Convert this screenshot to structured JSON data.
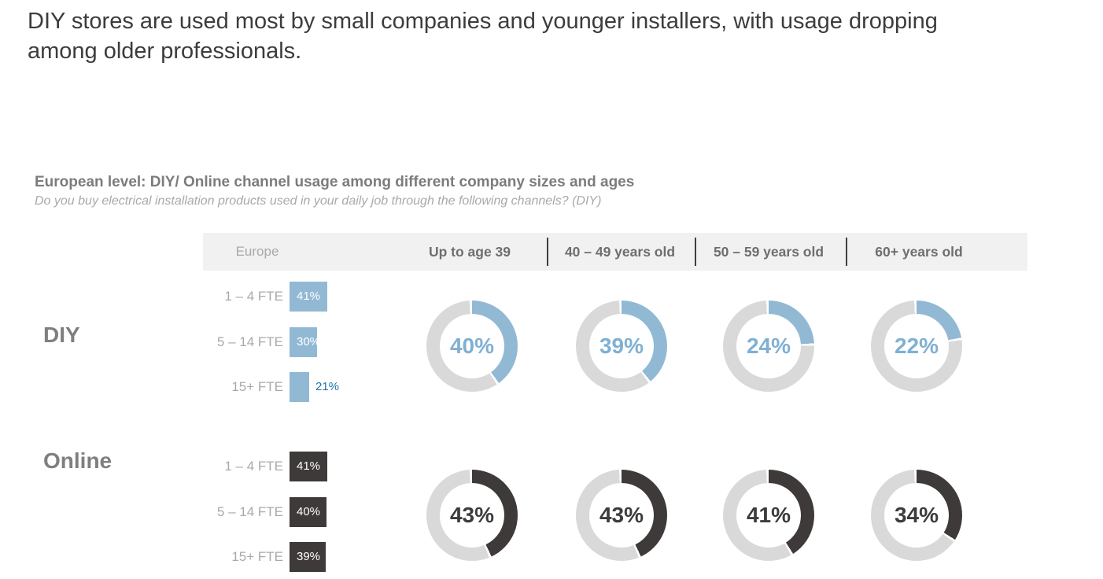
{
  "headline": {
    "line1": "DIY stores are used most by small companies and younger installers, with usage dropping",
    "line2": "among older professionals."
  },
  "chart_heading": "European level: DIY/ Online channel usage among different company sizes and ages",
  "chart_question": "Do you buy electrical installation products used in your daily job through the following channels? (DIY)",
  "columns": {
    "region": "Europe",
    "ages": [
      "Up to age 39",
      "40 – 49 years old",
      "50 – 59 years old",
      "60+ years old"
    ]
  },
  "groups": {
    "diy_label": "DIY",
    "online_label": "Online"
  },
  "colors": {
    "diy": "#92b9d4",
    "online": "#3e3a39",
    "ring_rest": "#d9d9d9",
    "band": "#f1f1f1",
    "diy_value_text": "#7fb0d4",
    "online_value_text": "#3c3c3c",
    "diy_outside_label": "#1e74a6"
  },
  "chart_data": [
    {
      "type": "bar",
      "group": "DIY",
      "region": "Europe",
      "categories": [
        "1 – 4 FTE",
        "5 – 14 FTE",
        "15+ FTE"
      ],
      "values": [
        41,
        30,
        21
      ],
      "unit": "%",
      "color": "#92b9d4",
      "orientation": "horizontal"
    },
    {
      "type": "pie",
      "subtype": "donut",
      "group": "DIY",
      "categories": [
        "Up to age 39",
        "40 – 49 years old",
        "50 – 59 years old",
        "60+ years old"
      ],
      "values": [
        40,
        39,
        24,
        22
      ],
      "unit": "%",
      "color": "#92b9d4"
    },
    {
      "type": "bar",
      "group": "Online",
      "region": "Europe",
      "categories": [
        "1 – 4 FTE",
        "5 – 14 FTE",
        "15+ FTE"
      ],
      "values": [
        41,
        40,
        39
      ],
      "unit": "%",
      "color": "#3e3a39",
      "orientation": "horizontal"
    },
    {
      "type": "pie",
      "subtype": "donut",
      "group": "Online",
      "categories": [
        "Up to age 39",
        "40 – 49 years old",
        "50 – 59 years old",
        "60+ years old"
      ],
      "values": [
        43,
        43,
        41,
        34
      ],
      "unit": "%",
      "color": "#3e3a39"
    }
  ]
}
